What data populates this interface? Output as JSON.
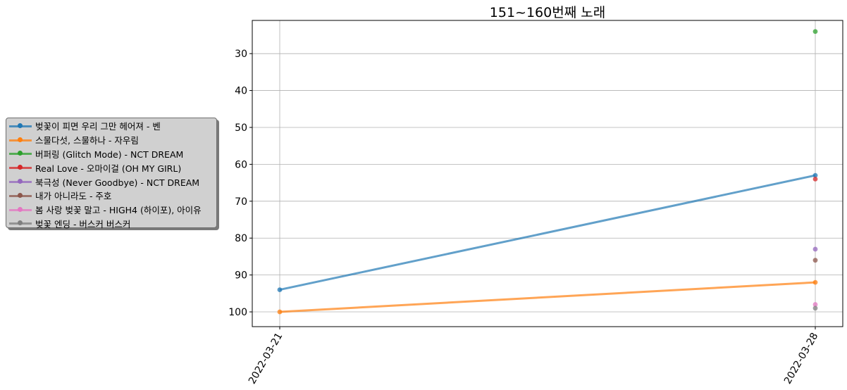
{
  "chart_data": {
    "type": "line",
    "title": "151~160번째 노래",
    "xlabel": "",
    "ylabel": "",
    "x": [
      "2022-03-21",
      "2022-03-28"
    ],
    "ylim": [
      104,
      21
    ],
    "y_inverted": true,
    "yticks": [
      30,
      40,
      50,
      60,
      70,
      80,
      90,
      100
    ],
    "grid": true,
    "legend_position": "left, outside plot",
    "series": [
      {
        "name": "벚꽃이 피면 우리 그만 헤어져 - 벤",
        "color": "#1f77b4",
        "values": [
          94,
          63
        ]
      },
      {
        "name": "스물다섯, 스물하나 - 자우림",
        "color": "#ff7f0e",
        "values": [
          100,
          92
        ]
      },
      {
        "name": "버퍼링 (Glitch Mode) - NCT DREAM",
        "color": "#2ca02c",
        "values": [
          null,
          24
        ]
      },
      {
        "name": "Real Love - 오마이걸 (OH MY GIRL)",
        "color": "#d62728",
        "values": [
          null,
          64
        ]
      },
      {
        "name": "북극성 (Never Goodbye) - NCT DREAM",
        "color": "#9467bd",
        "values": [
          null,
          83
        ]
      },
      {
        "name": "내가 아니라도 - 주호",
        "color": "#8c564b",
        "values": [
          null,
          86
        ]
      },
      {
        "name": "봄 사랑 벚꽃 말고 - HIGH4 (하이포), 아이유",
        "color": "#e377c2",
        "values": [
          null,
          98
        ]
      },
      {
        "name": "벚꽃 엔딩 - 버스커 버스커",
        "color": "#7f7f7f",
        "values": [
          null,
          99
        ]
      }
    ]
  }
}
